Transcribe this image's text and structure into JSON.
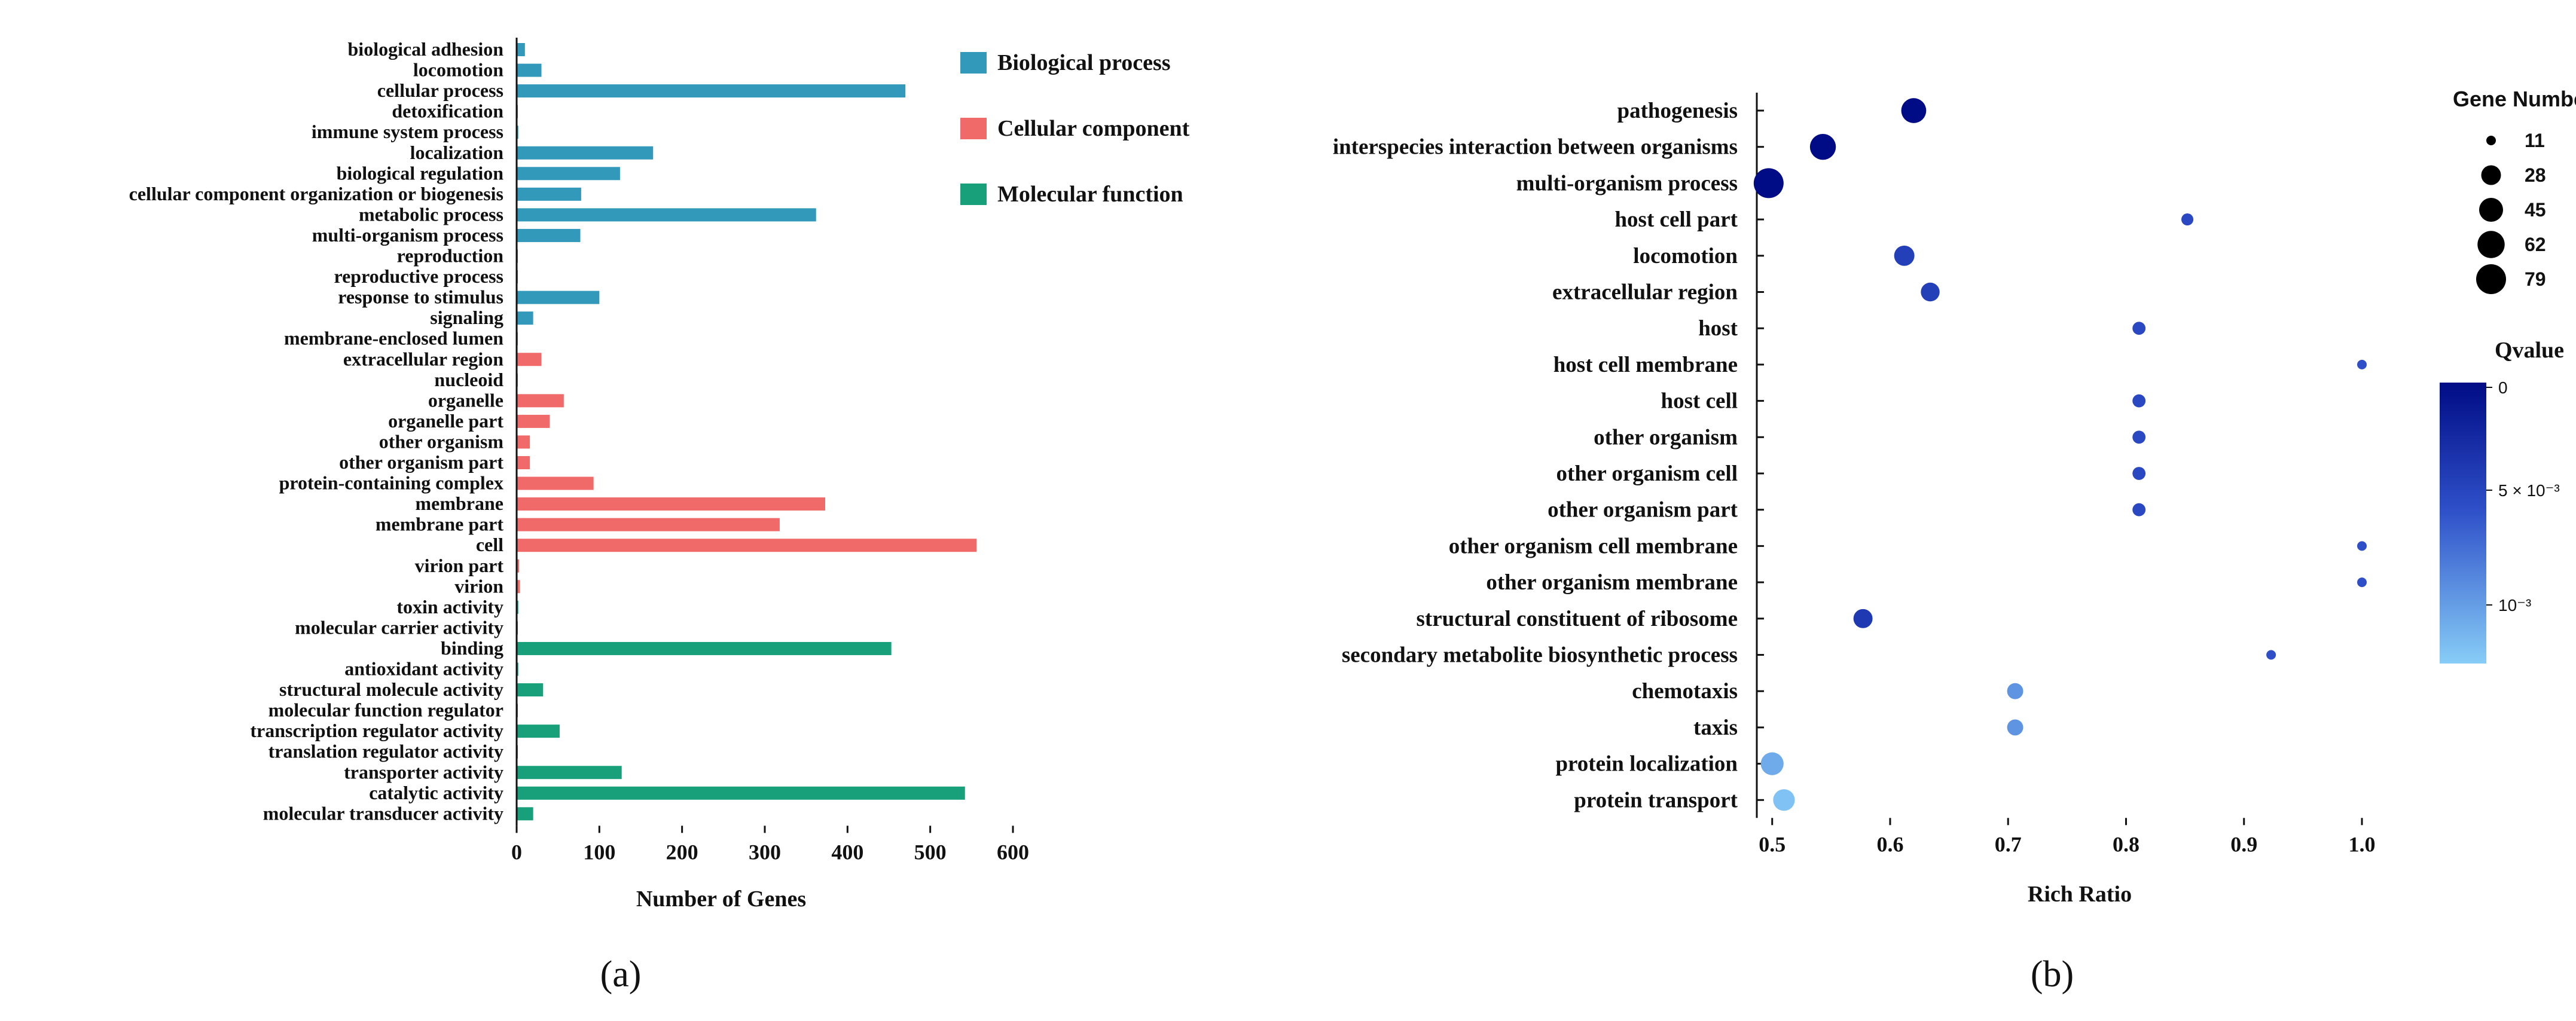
{
  "panel_labels": {
    "a": "(a)",
    "b": "(b)"
  },
  "colors": {
    "Biological process": "#3399bb",
    "Cellular component": "#f06a6a",
    "Molecular function": "#17a07a",
    "qvalue_low": "#87cdf7",
    "qvalue_high": "#000c85",
    "axis": "#111111"
  },
  "chart_data": [
    {
      "id": "a",
      "type": "bar",
      "orientation": "horizontal",
      "xlabel": "Number of Genes",
      "xlim": [
        0,
        600
      ],
      "xticks": [
        0,
        100,
        200,
        300,
        400,
        500,
        600
      ],
      "legend": [
        "Biological process",
        "Cellular component",
        "Molecular function"
      ],
      "legend_position": "top-right",
      "categories": [
        "biological adhesion",
        "locomotion",
        "cellular process",
        "detoxification",
        "immune system process",
        "localization",
        "biological regulation",
        "cellular component organization or biogenesis",
        "metabolic process",
        "multi-organism process",
        "reproduction",
        "reproductive process",
        "response to stimulus",
        "signaling",
        "membrane-enclosed lumen",
        "extracellular region",
        "nucleoid",
        "organelle",
        "organelle part",
        "other organism",
        "other organism part",
        "protein-containing complex",
        "membrane",
        "membrane part",
        "cell",
        "virion part",
        "virion",
        "toxin activity",
        "molecular carrier activity",
        "binding",
        "antioxidant activity",
        "structural molecule activity",
        "molecular function regulator",
        "transcription regulator activity",
        "translation regulator activity",
        "transporter activity",
        "catalytic activity",
        "molecular transducer activity"
      ],
      "values": [
        10,
        30,
        470,
        1,
        2,
        165,
        125,
        78,
        362,
        77,
        1,
        1,
        100,
        20,
        1,
        30,
        1,
        57,
        40,
        16,
        16,
        93,
        373,
        318,
        556,
        3,
        4,
        2,
        1,
        453,
        2,
        32,
        1,
        52,
        1,
        127,
        542,
        20
      ],
      "groups": [
        "Biological process",
        "Biological process",
        "Biological process",
        "Biological process",
        "Biological process",
        "Biological process",
        "Biological process",
        "Biological process",
        "Biological process",
        "Biological process",
        "Biological process",
        "Biological process",
        "Biological process",
        "Biological process",
        "Cellular component",
        "Cellular component",
        "Cellular component",
        "Cellular component",
        "Cellular component",
        "Cellular component",
        "Cellular component",
        "Cellular component",
        "Cellular component",
        "Cellular component",
        "Cellular component",
        "Cellular component",
        "Cellular component",
        "Molecular function",
        "Molecular function",
        "Molecular function",
        "Molecular function",
        "Molecular function",
        "Molecular function",
        "Molecular function",
        "Molecular function",
        "Molecular function",
        "Molecular function",
        "Molecular function"
      ]
    },
    {
      "id": "b",
      "type": "scatter",
      "xlabel": "Rich Ratio",
      "xlim": [
        0.49,
        1.0
      ],
      "xticks": [
        0.5,
        0.6,
        0.7,
        0.8,
        0.9,
        1.0
      ],
      "xtick_labels": [
        "0.5",
        "0.6",
        "0.7",
        "0.8",
        "0.9",
        "1.0"
      ],
      "categories": [
        "pathogenesis",
        "interspecies interaction between organisms",
        "multi-organism process",
        "host cell part",
        "locomotion",
        "extracellular region",
        "host",
        "host cell membrane",
        "host cell",
        "other organism",
        "other organism cell",
        "other organism part",
        "other organism cell membrane",
        "other organism membrane",
        "structural constituent of ribosome",
        "secondary metabolite biosynthetic process",
        "chemotaxis",
        "taxis",
        "protein localization",
        "protein transport"
      ],
      "x": [
        0.62,
        0.543,
        0.497,
        0.852,
        0.612,
        0.634,
        0.811,
        1.0,
        0.811,
        0.811,
        0.811,
        0.811,
        1.0,
        1.0,
        0.577,
        0.923,
        0.706,
        0.706,
        0.5,
        0.51
      ],
      "gene_number": [
        50,
        55,
        79,
        12,
        30,
        25,
        13,
        11,
        13,
        13,
        13,
        13,
        11,
        11,
        26,
        11,
        18,
        18,
        40,
        35
      ],
      "qvalue": [
        0.0,
        0.0,
        0.0,
        0.004,
        0.0035,
        0.0035,
        0.004,
        0.0045,
        0.004,
        0.004,
        0.004,
        0.004,
        0.0045,
        0.0045,
        0.003,
        0.0045,
        0.0075,
        0.0075,
        0.0085,
        0.0095
      ],
      "size_legend": {
        "title": "Gene Number",
        "values": [
          11,
          28,
          45,
          62,
          79
        ],
        "labels": [
          "11",
          "28",
          "45",
          "62",
          "79"
        ]
      },
      "color_legend": {
        "title": "Qvalue",
        "range": [
          0,
          0.01
        ],
        "tick_labels": [
          "0",
          "5 × 10⁻³",
          "10⁻³"
        ]
      }
    }
  ]
}
